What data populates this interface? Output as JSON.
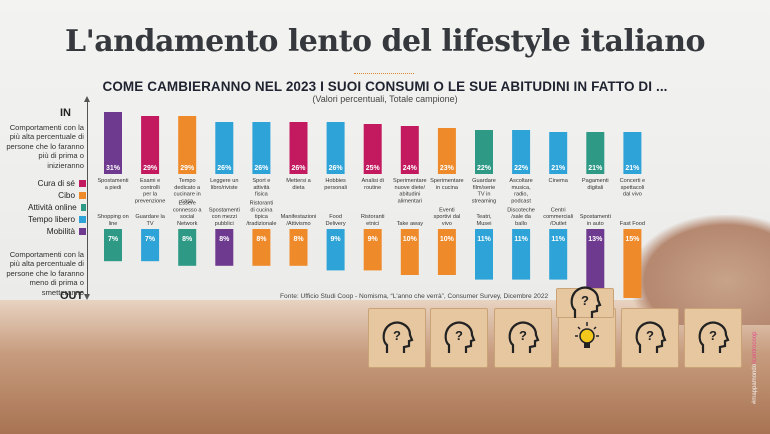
{
  "title": "L'andamento lento del lifestyle italiano",
  "subtitle": "COME CAMBIERANNO NEL 2023 I SUOI CONSUMI O LE SUE ABITUDINI IN FATTO DI ...",
  "note": "(Valori percentuali, Totale campione)",
  "in_label": "IN",
  "out_label": "OUT",
  "in_description": "Comportamenti con la più alta percentuale di persone che lo faranno più di prima o inizieranno",
  "out_description": "Comportamenti con la più alta percentuale di persone che lo faranno meno di prima o smetteranno",
  "source": "Fonte: Ufficio Studi Coop - Nomisma, “L'anno che verrà”, Consumer Survey, Dicembre 2022",
  "credit": "#mappamondo",
  "credit_brand": "ilcentrocoop",
  "colors": {
    "Cura di sé": "#c2195f",
    "Cibo": "#ef8a2b",
    "Attività online": "#2e9a86",
    "Tempo libero": "#2ea3d8",
    "Mobilità": "#6e3a8f"
  },
  "legend": [
    "Cura di sé",
    "Cibo",
    "Attività online",
    "Tempo libero",
    "Mobilità"
  ],
  "chart_data": {
    "type": "bar",
    "in": [
      {
        "label": "Spostamenti a piedi",
        "value": 31,
        "category": "Mobilità"
      },
      {
        "label": "Esami e controlli per la prevenzione",
        "value": 29,
        "category": "Cura di sé"
      },
      {
        "label": "Tempo dedicato a cucinare in casa",
        "value": 29,
        "category": "Cibo"
      },
      {
        "label": "Leggere un libro/riviste",
        "value": 26,
        "category": "Tempo libero"
      },
      {
        "label": "Sport e attività fisica",
        "value": 26,
        "category": "Tempo libero"
      },
      {
        "label": "Mettersi a dieta",
        "value": 26,
        "category": "Cura di sé"
      },
      {
        "label": "Hobbies personali",
        "value": 26,
        "category": "Tempo libero"
      },
      {
        "label": "Analisi di routine",
        "value": 25,
        "category": "Cura di sé"
      },
      {
        "label": "Sperimentare nuove diete/ abitudini alimentari",
        "value": 24,
        "category": "Cura di sé"
      },
      {
        "label": "Sperimentare in cucina",
        "value": 23,
        "category": "Cibo"
      },
      {
        "label": "Guardare film/serie TV in streaming",
        "value": 22,
        "category": "Attività online"
      },
      {
        "label": "Ascoltare musica, radio, podcast",
        "value": 22,
        "category": "Tempo libero"
      },
      {
        "label": "Cinema",
        "value": 21,
        "category": "Tempo libero"
      },
      {
        "label": "Pagamenti digitali",
        "value": 21,
        "category": "Attività online"
      },
      {
        "label": "Concerti e spettacoli dal vivo",
        "value": 21,
        "category": "Tempo libero"
      }
    ],
    "out": [
      {
        "label": "Shopping on line",
        "value": 7,
        "category": "Attività online"
      },
      {
        "label": "Guardare la TV",
        "value": 7,
        "category": "Tempo libero"
      },
      {
        "label": "Essere connesso a social Network",
        "value": 8,
        "category": "Attività online"
      },
      {
        "label": "Spostamenti con mezzi pubblici",
        "value": 8,
        "category": "Mobilità"
      },
      {
        "label": "Ristoranti di cucina tipica /tradizionale",
        "value": 8,
        "category": "Cibo"
      },
      {
        "label": "Manifestazioni /Attivismo",
        "value": 8,
        "category": "Cibo"
      },
      {
        "label": "Food Delivery",
        "value": 9,
        "category": "Tempo libero"
      },
      {
        "label": "Ristoranti etnici",
        "value": 9,
        "category": "Cibo"
      },
      {
        "label": "Take away",
        "value": 10,
        "category": "Cibo"
      },
      {
        "label": "Eventi sportivi dal vivo",
        "value": 10,
        "category": "Cibo"
      },
      {
        "label": "Teatri, Musei",
        "value": 11,
        "category": "Tempo libero"
      },
      {
        "label": "Discoteche /sale da ballo",
        "value": 11,
        "category": "Tempo libero"
      },
      {
        "label": "Centri commerciali /Outlet",
        "value": 11,
        "category": "Tempo libero"
      },
      {
        "label": "Spostamenti in auto",
        "value": 13,
        "category": "Mobilità"
      },
      {
        "label": "Fast Food",
        "value": 15,
        "category": "Cibo"
      }
    ]
  }
}
